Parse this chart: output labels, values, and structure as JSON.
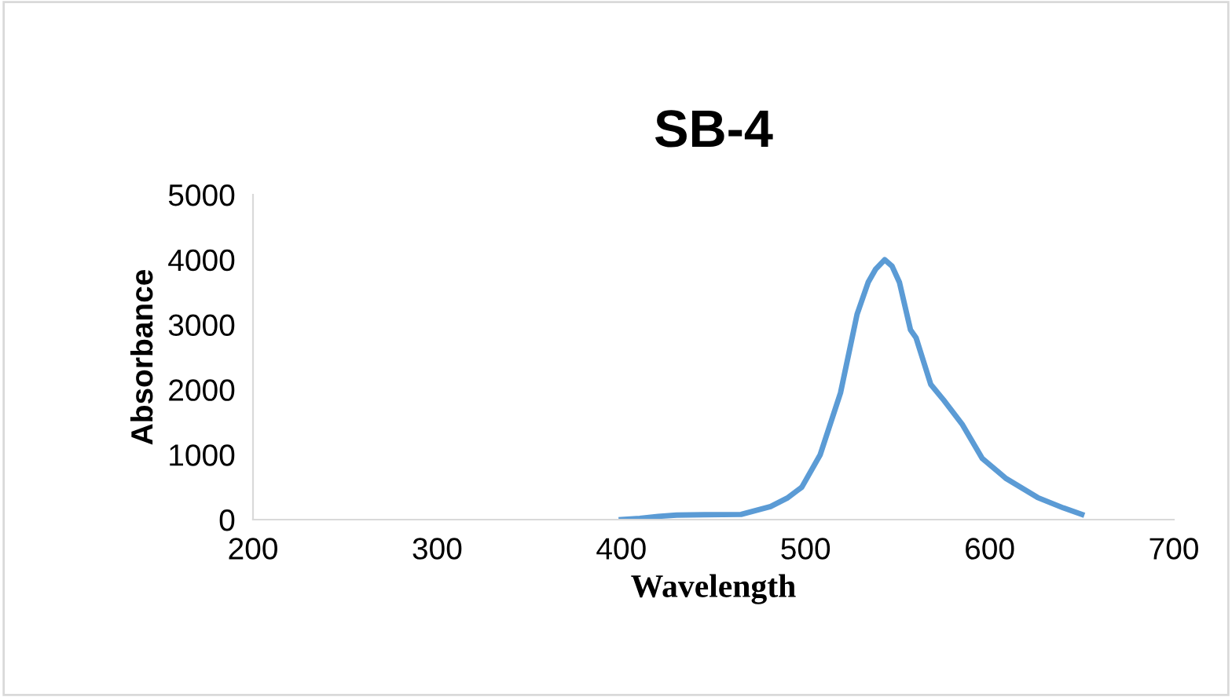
{
  "chart_data": {
    "type": "line",
    "title": "SB-4",
    "xlabel": "Wavelength",
    "ylabel": "Absorbance",
    "x": [
      400,
      410,
      420,
      430,
      445,
      465,
      481,
      490,
      498,
      508,
      519,
      528,
      534,
      538,
      543,
      547,
      551,
      557,
      560,
      568,
      575,
      585,
      596,
      609,
      626,
      640,
      650
    ],
    "series": [
      {
        "color": "#5b9bd5",
        "values": [
          0,
          20,
          50,
          70,
          75,
          80,
          200,
          330,
          500,
          1000,
          1950,
          3160,
          3650,
          3850,
          4000,
          3900,
          3650,
          2920,
          2800,
          2080,
          1840,
          1470,
          940,
          630,
          340,
          180,
          80
        ]
      }
    ],
    "xlim": [
      200,
      700
    ],
    "ylim": [
      0,
      5000
    ],
    "xticks": [
      200,
      300,
      400,
      500,
      600,
      700
    ],
    "yticks": [
      0,
      1000,
      2000,
      3000,
      4000,
      5000
    ],
    "grid": false,
    "legend": false,
    "marker": "none",
    "line_style": "solid"
  }
}
